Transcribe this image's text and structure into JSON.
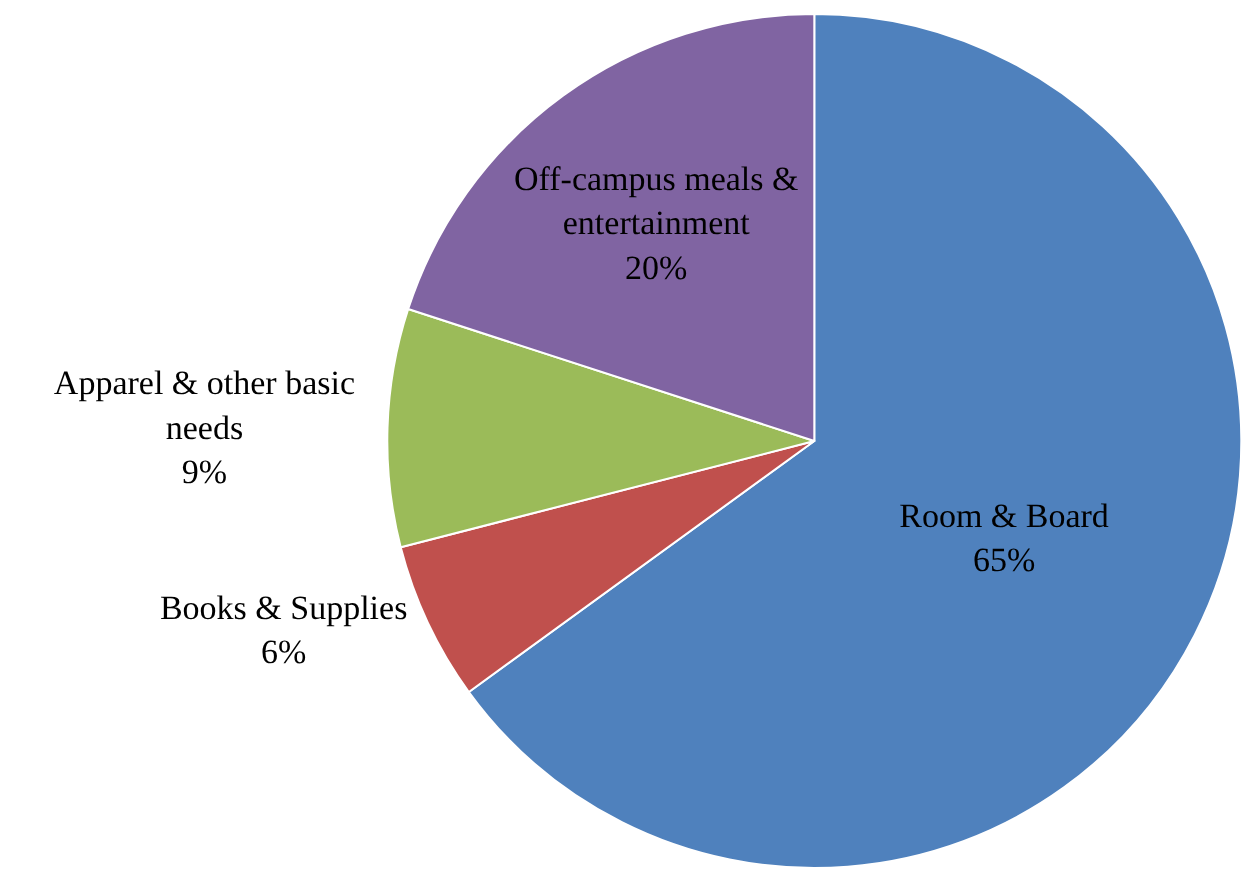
{
  "chart_data": {
    "type": "pie",
    "categories": [
      "Room & Board",
      "Books & Supplies",
      "Apparel & other basic needs",
      "Off-campus meals & entertainment"
    ],
    "values": [
      65,
      6,
      9,
      20
    ],
    "value_labels": [
      "65%",
      "6%",
      "9%",
      "20%"
    ],
    "colors": [
      "#4f81bd",
      "#c0504d",
      "#9bbb59",
      "#8064a2"
    ],
    "legend": false
  }
}
